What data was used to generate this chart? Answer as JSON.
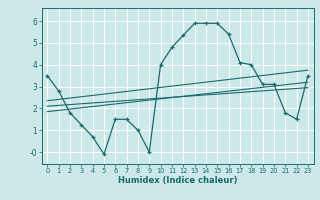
{
  "xlabel": "Humidex (Indice chaleur)",
  "ylabel": "",
  "background_color": "#cde8e8",
  "grid_color": "#ffffff",
  "line_color": "#1a6b6b",
  "xlim": [
    -0.5,
    23.5
  ],
  "ylim": [
    -0.55,
    6.6
  ],
  "xticks": [
    0,
    1,
    2,
    3,
    4,
    5,
    6,
    7,
    8,
    9,
    10,
    11,
    12,
    13,
    14,
    15,
    16,
    17,
    18,
    19,
    20,
    21,
    22,
    23
  ],
  "yticks": [
    0,
    1,
    2,
    3,
    4,
    5,
    6
  ],
  "ytick_labels": [
    "-0",
    "1",
    "2",
    "3",
    "4",
    "5",
    "6"
  ],
  "curve1_x": [
    0,
    1,
    2,
    3,
    4,
    5,
    6,
    7,
    8,
    9,
    10,
    11,
    12,
    13,
    14,
    15,
    16,
    17,
    18,
    19,
    20,
    21,
    22,
    23
  ],
  "curve1_y": [
    3.5,
    2.8,
    1.8,
    1.25,
    0.7,
    -0.1,
    1.5,
    1.5,
    1.0,
    0.0,
    4.0,
    4.8,
    5.35,
    5.9,
    5.9,
    5.9,
    5.4,
    4.1,
    4.0,
    3.1,
    3.1,
    1.8,
    1.5,
    3.5
  ],
  "line1_x": [
    0,
    23
  ],
  "line1_y": [
    1.85,
    3.2
  ],
  "line2_x": [
    0,
    23
  ],
  "line2_y": [
    2.35,
    3.75
  ],
  "line3_x": [
    0,
    23
  ],
  "line3_y": [
    2.1,
    2.95
  ]
}
